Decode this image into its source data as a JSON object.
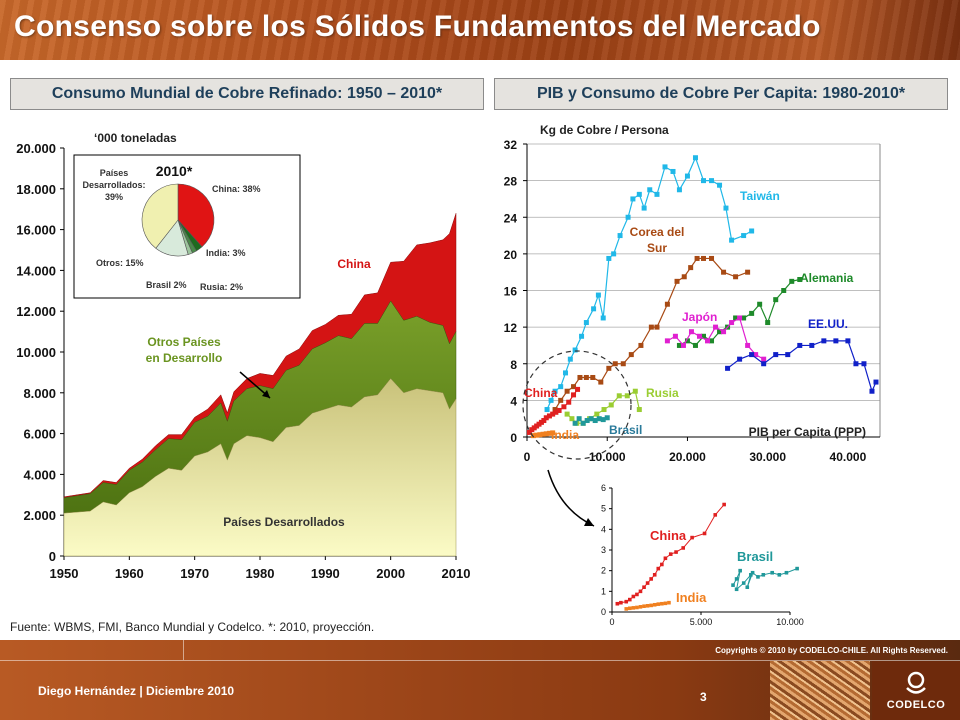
{
  "slide": {
    "title": "Consenso sobre los Sólidos Fundamentos del Mercado",
    "left_header": "Consumo Mundial de Cobre Refinado: 1950 – 2010*",
    "right_header": "PIB y Consumo de Cobre Per Capita: 1980-2010*",
    "footnote": "Fuente: WBMS, FMI, Banco Mundial y Codelco. *: 2010, proyección.",
    "copyright": "Copyrights © 2010 by CODELCO-CHILE.  All Rights Reserved.",
    "author": "Diego Hernández | Diciembre 2010",
    "page_number": "3",
    "logo_text": "CODELCO"
  },
  "colors": {
    "developed": "#eeeeaa",
    "other_developing": "#6a8f1c",
    "china": "#d41414",
    "header_text": "#1e3f5a",
    "band": "#a6491a"
  },
  "chart_data": [
    {
      "type": "area",
      "title": "Consumo Mundial de Cobre Refinado: 1950 – 2010*",
      "ylabel": "‘000 toneladas",
      "xlim": [
        1950,
        2010
      ],
      "ylim": [
        0,
        20000
      ],
      "y_ticks": [
        "0",
        "2.000",
        "4.000",
        "6.000",
        "8.000",
        "10.000",
        "12.000",
        "14.000",
        "16.000",
        "18.000",
        "20.000"
      ],
      "x_ticks": [
        "1950",
        "1960",
        "1970",
        "1980",
        "1990",
        "2000",
        "2010"
      ],
      "x": [
        1950,
        1952,
        1954,
        1956,
        1958,
        1960,
        1962,
        1964,
        1966,
        1968,
        1970,
        1972,
        1974,
        1975,
        1976,
        1978,
        1980,
        1982,
        1984,
        1986,
        1988,
        1990,
        1992,
        1994,
        1996,
        1998,
        2000,
        2002,
        2004,
        2006,
        2008,
        2009,
        2010
      ],
      "series": [
        {
          "name": "Países Desarrollados",
          "values": [
            2100,
            2150,
            2200,
            2650,
            2500,
            3100,
            3400,
            3900,
            4300,
            4200,
            4900,
            5100,
            5500,
            4700,
            5500,
            5900,
            5800,
            5600,
            6300,
            6400,
            7000,
            7200,
            7400,
            7300,
            7800,
            7900,
            8700,
            8000,
            8200,
            8100,
            8000,
            7200,
            7700
          ]
        },
        {
          "name": "Otros Países en Desarrollo",
          "values": [
            750,
            800,
            850,
            950,
            1000,
            1100,
            1200,
            1300,
            1450,
            1500,
            1650,
            1750,
            2000,
            1900,
            2100,
            2300,
            2550,
            2600,
            2800,
            2950,
            3150,
            3250,
            3400,
            3350,
            3600,
            3500,
            3800,
            3550,
            3550,
            3350,
            3300,
            3200,
            3300
          ]
        },
        {
          "name": "China",
          "values": [
            50,
            50,
            50,
            100,
            100,
            100,
            150,
            200,
            200,
            250,
            250,
            350,
            400,
            420,
            450,
            500,
            600,
            650,
            700,
            800,
            900,
            900,
            1000,
            1200,
            1400,
            1500,
            1900,
            2900,
            3500,
            3900,
            4200,
            5400,
            5800
          ]
        }
      ],
      "labels": {
        "china": "China",
        "other_developing": "Otros Países en Desarrollo",
        "developed": "Países Desarrollados"
      }
    },
    {
      "type": "pie",
      "title": "2010*",
      "categories": [
        "China",
        "India",
        "Rusia",
        "Brasil",
        "Otros",
        "Países Desarrollados"
      ],
      "values": [
        38,
        3,
        2,
        2,
        15,
        39
      ],
      "value_labels": [
        "China: 38%",
        "India: 3%",
        "Rusia: 2%",
        "Brasil 2%",
        "Otros: 15%",
        "Países Desarrollados: 39%"
      ],
      "colors": [
        "#e01414",
        "#1e6b1e",
        "#4a8a4a",
        "#9cc49c",
        "#d8eadb",
        "#f0f0b0"
      ]
    },
    {
      "type": "scatter",
      "title": "PIB y Consumo de Cobre Per Capita: 1980-2010*",
      "ylabel": "Kg de Cobre / Persona",
      "xlabel": "PIB per Capita  (PPP)",
      "xlim": [
        0,
        44000
      ],
      "ylim": [
        0,
        32
      ],
      "x_ticks": [
        "0",
        "10.000",
        "20.000",
        "30.000",
        "40.000"
      ],
      "y_ticks": [
        "0",
        "4",
        "8",
        "12",
        "16",
        "20",
        "24",
        "28",
        "32"
      ],
      "series": [
        {
          "name": "Taiwán",
          "color": "#20b8e8",
          "x": [
            2500,
            3000,
            3500,
            4200,
            4800,
            5400,
            6000,
            6800,
            7400,
            8300,
            8900,
            9500,
            10200,
            10800,
            11600,
            12600,
            13200,
            14000,
            14600,
            15300,
            16200,
            17200,
            18200,
            19000,
            20000,
            21000,
            22000,
            23000,
            24000,
            24800,
            25500,
            27000,
            28000
          ],
          "y": [
            3,
            4,
            5,
            5.5,
            7,
            8.5,
            9.5,
            11,
            12.5,
            14,
            15.5,
            13,
            19.5,
            20,
            22,
            24,
            26,
            26.5,
            25,
            27,
            26.5,
            29.5,
            29,
            27,
            28.5,
            30.5,
            28,
            28,
            27.5,
            25,
            21.5,
            22,
            22.5
          ]
        },
        {
          "name": "Corea del Sur",
          "color": "#a84a14",
          "x": [
            3500,
            4200,
            5000,
            5800,
            6600,
            7400,
            8200,
            9200,
            10200,
            11000,
            12000,
            13000,
            14200,
            15500,
            16200,
            17500,
            18700,
            19600,
            20400,
            21200,
            22000,
            23000,
            24500,
            26000,
            27500
          ],
          "y": [
            3,
            4,
            5,
            5.5,
            6.5,
            6.5,
            6.5,
            6,
            7.5,
            8,
            8,
            9,
            10,
            12,
            12,
            14.5,
            17,
            17.5,
            18.5,
            19.5,
            19.5,
            19.5,
            18,
            17.5,
            18
          ]
        },
        {
          "name": "Alemania",
          "color": "#1e8a2a",
          "x": [
            19000,
            20000,
            21000,
            22000,
            23000,
            24000,
            25000,
            26000,
            27000,
            28000,
            29000,
            30000,
            31000,
            32000,
            33000,
            34000
          ],
          "y": [
            10,
            10.5,
            10,
            11,
            10.5,
            11.5,
            12,
            13,
            13,
            13.5,
            14.5,
            12.5,
            15,
            16,
            17,
            17.2
          ]
        },
        {
          "name": "Japón",
          "color": "#e020d0",
          "x": [
            17500,
            18500,
            19500,
            20500,
            21500,
            22500,
            23500,
            24500,
            25500,
            26500,
            27500,
            28500,
            29500
          ],
          "y": [
            10.5,
            11,
            10,
            11.5,
            11,
            10.5,
            12,
            11.5,
            12.5,
            13,
            10,
            9,
            8.5
          ]
        },
        {
          "name": "EE.UU.",
          "color": "#1020c8",
          "x": [
            25000,
            26500,
            28000,
            29500,
            31000,
            32500,
            34000,
            35500,
            37000,
            38500,
            40000,
            41000,
            42000,
            43000,
            43500
          ],
          "y": [
            7.5,
            8.5,
            9,
            8,
            9,
            9,
            10,
            10,
            10.5,
            10.5,
            10.5,
            8,
            8,
            5,
            6
          ]
        },
        {
          "name": "Rusia",
          "color": "#9acd32",
          "x": [
            5000,
            5600,
            6200,
            7000,
            7800,
            8700,
            9600,
            10500,
            11500,
            12500,
            13500,
            14000
          ],
          "y": [
            2.5,
            2,
            1.5,
            1.5,
            2,
            2.5,
            3,
            3.5,
            4.5,
            4.5,
            5,
            3
          ]
        },
        {
          "name": "Brasil",
          "color": "#20989a",
          "x": [
            6000,
            6500,
            7000,
            7500,
            8000,
            8500,
            9000,
            9500,
            10000
          ],
          "y": [
            1.5,
            2,
            1.5,
            1.8,
            2,
            1.8,
            2,
            1.9,
            2.1
          ]
        },
        {
          "name": "China",
          "color": "#e02020",
          "x": [
            300,
            600,
            900,
            1200,
            1500,
            1800,
            2100,
            2400,
            2800,
            3200,
            3600,
            4000,
            4600,
            5200,
            5800,
            6300
          ],
          "y": [
            0.5,
            0.8,
            1,
            1.2,
            1.4,
            1.6,
            1.8,
            2.1,
            2.3,
            2.5,
            2.7,
            2.9,
            3.3,
            3.8,
            4.6,
            5.2
          ]
        },
        {
          "name": "India",
          "color": "#f08020",
          "x": [
            800,
            1200,
            1600,
            2000,
            2400,
            2800,
            3200
          ],
          "y": [
            0.15,
            0.2,
            0.25,
            0.3,
            0.35,
            0.4,
            0.45
          ]
        }
      ]
    },
    {
      "type": "scatter",
      "title": "",
      "xlim": [
        0,
        10000
      ],
      "ylim": [
        0,
        6
      ],
      "x_ticks": [
        "0",
        "5.000",
        "10.000"
      ],
      "y_ticks": [
        "0",
        "1",
        "2",
        "3",
        "4",
        "5",
        "6"
      ],
      "series": [
        {
          "name": "China",
          "color": "#e02020",
          "x": [
            300,
            500,
            800,
            1000,
            1200,
            1400,
            1600,
            1800,
            2000,
            2200,
            2400,
            2600,
            2800,
            3000,
            3300,
            3600,
            4000,
            4500,
            5200,
            5800,
            6300
          ],
          "y": [
            0.4,
            0.45,
            0.5,
            0.6,
            0.75,
            0.85,
            1,
            1.2,
            1.4,
            1.6,
            1.8,
            2.1,
            2.3,
            2.6,
            2.8,
            2.9,
            3.1,
            3.6,
            3.8,
            4.7,
            5.2
          ]
        },
        {
          "name": "India",
          "color": "#f08020",
          "x": [
            800,
            1000,
            1200,
            1400,
            1600,
            1800,
            2000,
            2200,
            2400,
            2600,
            2800,
            3000,
            3200
          ],
          "y": [
            0.15,
            0.18,
            0.2,
            0.22,
            0.25,
            0.28,
            0.3,
            0.32,
            0.35,
            0.38,
            0.4,
            0.42,
            0.45
          ]
        },
        {
          "name": "Brasil",
          "color": "#20989a",
          "x": [
            6800,
            7000,
            7200,
            7000,
            7400,
            7800,
            7600,
            7900,
            8200,
            8500,
            9000,
            9400,
            9800,
            10400
          ],
          "y": [
            1.3,
            1.6,
            2,
            1.1,
            1.4,
            1.8,
            1.2,
            1.9,
            1.7,
            1.8,
            1.9,
            1.8,
            1.9,
            2.1
          ]
        }
      ]
    }
  ]
}
